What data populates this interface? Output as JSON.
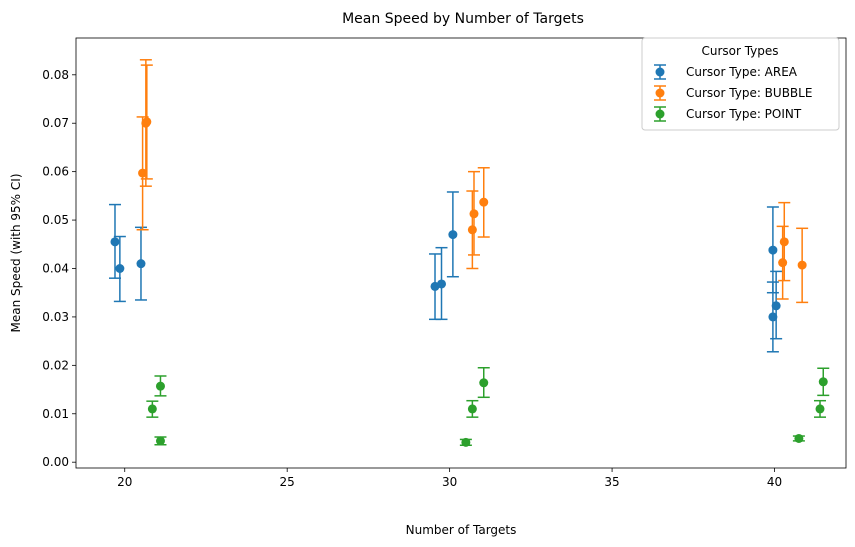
{
  "chart_data": {
    "type": "scatter",
    "title": "Mean Speed by Number of Targets",
    "xlabel": "Number of Targets",
    "ylabel": "Mean Speed (with 95% CI)",
    "xlim": [
      18.5,
      42.2
    ],
    "ylim": [
      -0.0012,
      0.0876
    ],
    "xticks": [
      20,
      25,
      30,
      35,
      40
    ],
    "yticks": [
      0.0,
      0.01,
      0.02,
      0.03,
      0.04,
      0.05,
      0.06,
      0.07,
      0.08
    ],
    "ytick_labels": [
      "0.00",
      "0.01",
      "0.02",
      "0.03",
      "0.04",
      "0.05",
      "0.06",
      "0.07",
      "0.08"
    ],
    "grid": false,
    "legend": {
      "title": "Cursor Types",
      "position": "top-right"
    },
    "series": [
      {
        "name": "Cursor Type: AREA",
        "color": "#1f77b4",
        "points": [
          {
            "x": 19.7,
            "y": 0.0455,
            "lo": 0.038,
            "hi": 0.0532
          },
          {
            "x": 19.85,
            "y": 0.04,
            "lo": 0.0332,
            "hi": 0.0466
          },
          {
            "x": 20.5,
            "y": 0.041,
            "lo": 0.0335,
            "hi": 0.0485
          },
          {
            "x": 29.55,
            "y": 0.0363,
            "lo": 0.0295,
            "hi": 0.043
          },
          {
            "x": 29.75,
            "y": 0.0368,
            "lo": 0.0295,
            "hi": 0.0443
          },
          {
            "x": 30.1,
            "y": 0.047,
            "lo": 0.0383,
            "hi": 0.0558
          },
          {
            "x": 39.95,
            "y": 0.0438,
            "lo": 0.035,
            "hi": 0.0527
          },
          {
            "x": 39.95,
            "y": 0.03,
            "lo": 0.0228,
            "hi": 0.0372
          },
          {
            "x": 40.05,
            "y": 0.0323,
            "lo": 0.0255,
            "hi": 0.0394
          }
        ]
      },
      {
        "name": "Cursor Type: BUBBLE",
        "color": "#ff7f0e",
        "points": [
          {
            "x": 20.55,
            "y": 0.0597,
            "lo": 0.048,
            "hi": 0.0713
          },
          {
            "x": 20.65,
            "y": 0.07,
            "lo": 0.057,
            "hi": 0.0831
          },
          {
            "x": 20.68,
            "y": 0.0703,
            "lo": 0.0585,
            "hi": 0.082
          },
          {
            "x": 30.7,
            "y": 0.048,
            "lo": 0.04,
            "hi": 0.056
          },
          {
            "x": 30.75,
            "y": 0.0513,
            "lo": 0.0428,
            "hi": 0.06
          },
          {
            "x": 31.05,
            "y": 0.0537,
            "lo": 0.0465,
            "hi": 0.0608
          },
          {
            "x": 40.25,
            "y": 0.0412,
            "lo": 0.0337,
            "hi": 0.0487
          },
          {
            "x": 40.3,
            "y": 0.0455,
            "lo": 0.0375,
            "hi": 0.0536
          },
          {
            "x": 40.85,
            "y": 0.0407,
            "lo": 0.033,
            "hi": 0.0483
          }
        ]
      },
      {
        "name": "Cursor Type: POINT",
        "color": "#2ca02c",
        "points": [
          {
            "x": 20.85,
            "y": 0.011,
            "lo": 0.0093,
            "hi": 0.0126
          },
          {
            "x": 21.1,
            "y": 0.0157,
            "lo": 0.0137,
            "hi": 0.0178
          },
          {
            "x": 21.1,
            "y": 0.0044,
            "lo": 0.0036,
            "hi": 0.0052
          },
          {
            "x": 30.5,
            "y": 0.0041,
            "lo": 0.0035,
            "hi": 0.0047
          },
          {
            "x": 30.7,
            "y": 0.011,
            "lo": 0.0093,
            "hi": 0.0127
          },
          {
            "x": 31.05,
            "y": 0.0164,
            "lo": 0.0134,
            "hi": 0.0195
          },
          {
            "x": 40.75,
            "y": 0.0049,
            "lo": 0.0044,
            "hi": 0.0054
          },
          {
            "x": 41.4,
            "y": 0.011,
            "lo": 0.0093,
            "hi": 0.0127
          },
          {
            "x": 41.5,
            "y": 0.0166,
            "lo": 0.0138,
            "hi": 0.0194
          }
        ]
      }
    ]
  }
}
